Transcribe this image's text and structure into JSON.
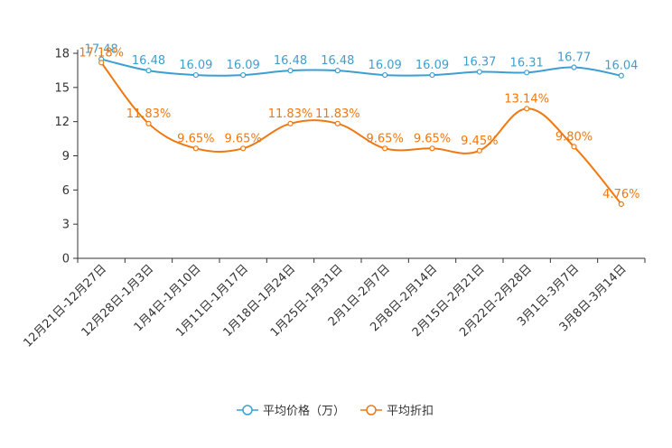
{
  "chart_data": {
    "type": "line",
    "title": "",
    "xlabel": "",
    "ylabel": "",
    "ylim": [
      0,
      18
    ],
    "yticks": [
      0,
      3,
      6,
      9,
      12,
      15,
      18
    ],
    "grid": false,
    "legend_position": "bottom",
    "categories": [
      "12月21日-12月27日",
      "12月28日-1月3日",
      "1月4日-1月10日",
      "1月11日-1月17日",
      "1月18日-1月24日",
      "1月25日-1月31日",
      "2月1日-2月7日",
      "2月8日-2月14日",
      "2月15日-2月21日",
      "2月22日-2月28日",
      "3月1日-3月7日",
      "3月8日-3月14日"
    ],
    "series": [
      {
        "name": "平均价格（万）",
        "color": "#3c9fd1",
        "values": [
          17.48,
          16.48,
          16.09,
          16.09,
          16.48,
          16.48,
          16.09,
          16.09,
          16.37,
          16.31,
          16.77,
          16.04
        ],
        "labels": [
          "17.48",
          "16.48",
          "16.09",
          "16.09",
          "16.48",
          "16.48",
          "16.09",
          "16.09",
          "16.37",
          "16.31",
          "16.77",
          "16.04"
        ]
      },
      {
        "name": "平均折扣",
        "color": "#f07810",
        "values": [
          17.18,
          11.83,
          9.65,
          9.65,
          11.83,
          11.83,
          9.65,
          9.65,
          9.45,
          13.14,
          9.8,
          4.76
        ],
        "labels": [
          "17.18%",
          "11.83%",
          "9.65%",
          "9.65%",
          "11.83%",
          "11.83%",
          "9.65%",
          "9.65%",
          "9.45%",
          "13.14%",
          "9.80%",
          "4.76%"
        ]
      }
    ]
  }
}
